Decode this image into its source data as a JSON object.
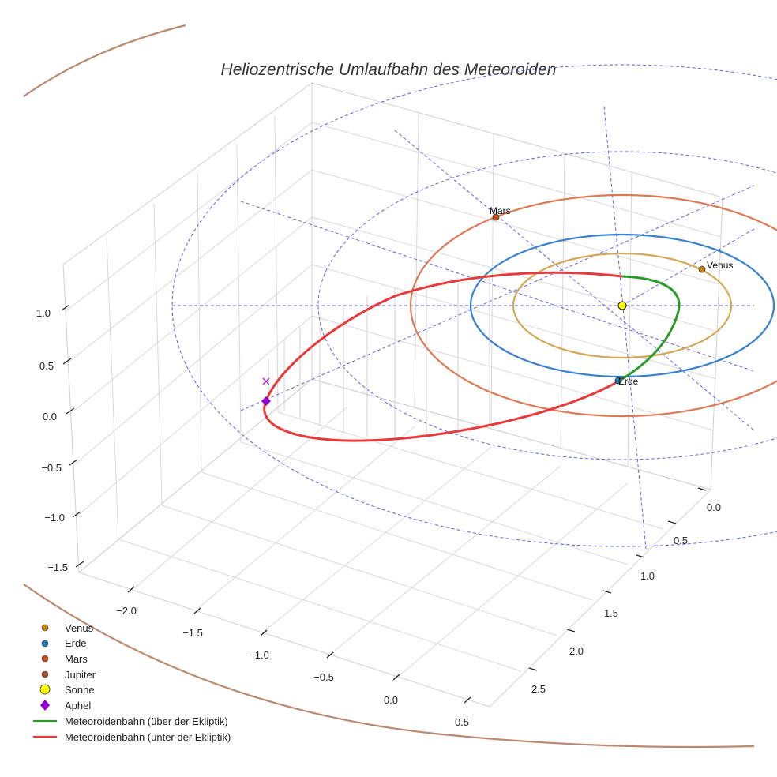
{
  "chart_data": {
    "type": "line3d",
    "title": "Heliozentrische Umlaufbahn des Meteoroiden",
    "axes": {
      "x": {
        "ticks": [
          "−2.0",
          "−1.5",
          "−1.0",
          "−0.5",
          "0.0",
          "0.5"
        ]
      },
      "y": {
        "ticks": [
          "0.0",
          "0.5",
          "1.0",
          "1.5",
          "2.0",
          "2.5"
        ]
      },
      "z": {
        "ticks": [
          "1.0",
          "0.5",
          "0.0",
          "−0.5",
          "−1.0",
          "−1.5"
        ]
      }
    },
    "bodies": [
      {
        "name": "Venus",
        "label": "Venus",
        "color": "#c8861a",
        "orbit_color": "#d4a857",
        "orbit_radius_au": 0.72
      },
      {
        "name": "Erde",
        "label": "Erde",
        "color": "#1f77b4",
        "orbit_color": "#3a80d0",
        "orbit_radius_au": 1.0
      },
      {
        "name": "Mars",
        "label": "Mars",
        "color": "#c0501c",
        "orbit_color": "#dd7a55",
        "orbit_radius_au": 1.52
      },
      {
        "name": "Jupiter",
        "label": "",
        "color": "#a0522d",
        "orbit_color": "#b98a70",
        "orbit_radius_au": 5.2
      }
    ],
    "sun": {
      "name": "Sonne",
      "color": "#ffff00"
    },
    "aphel": {
      "name": "Aphel",
      "color": "#9400d3"
    },
    "meteoroid": {
      "above_ecliptic": {
        "name": "Meteoroidenbahn (über der Ekliptik)",
        "color": "#2a9a2a"
      },
      "below_ecliptic": {
        "name": "Meteoroidenbahn (unter der Ekliptik)",
        "color": "#e83a3a"
      }
    },
    "legend": {
      "position": "bottom-left",
      "entries": [
        {
          "label": "Venus",
          "marker": "circle",
          "color": "#c8861a"
        },
        {
          "label": "Erde",
          "marker": "circle",
          "color": "#1f77b4"
        },
        {
          "label": "Mars",
          "marker": "circle",
          "color": "#c0501c"
        },
        {
          "label": "Jupiter",
          "marker": "circle",
          "color": "#a0522d"
        },
        {
          "label": "Sonne",
          "marker": "circle-large",
          "color": "#ffff00"
        },
        {
          "label": "Aphel",
          "marker": "diamond",
          "color": "#9400d3"
        },
        {
          "label": "Meteoroidenbahn (über der Ekliptik)",
          "marker": "line",
          "color": "#2a9a2a"
        },
        {
          "label": "Meteoroidenbahn (unter der Ekliptik)",
          "marker": "line",
          "color": "#e83a3a"
        }
      ]
    }
  }
}
